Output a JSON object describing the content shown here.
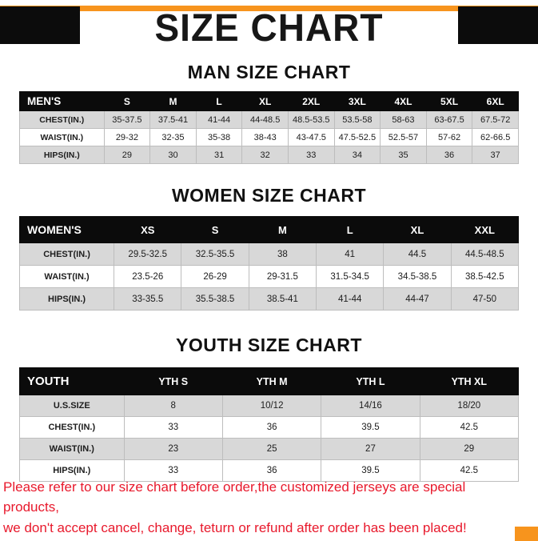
{
  "page": {
    "title": "SIZE CHART",
    "accent_color": "#F7941D",
    "header_block_color": "#0C0C0C",
    "footer_text_color": "#E8192C"
  },
  "sections": [
    {
      "id": "men",
      "heading": "MAN SIZE CHART",
      "table": {
        "header": [
          "MEN'S",
          "S",
          "M",
          "L",
          "XL",
          "2XL",
          "3XL",
          "4XL",
          "5XL",
          "6XL"
        ],
        "rows": [
          [
            "CHEST(IN.)",
            "35-37.5",
            "37.5-41",
            "41-44",
            "44-48.5",
            "48.5-53.5",
            "53.5-58",
            "58-63",
            "63-67.5",
            "67.5-72"
          ],
          [
            "WAIST(IN.)",
            "29-32",
            "32-35",
            "35-38",
            "38-43",
            "43-47.5",
            "47.5-52.5",
            "52.5-57",
            "57-62",
            "62-66.5"
          ],
          [
            "HIPS(IN.)",
            "29",
            "30",
            "31",
            "32",
            "33",
            "34",
            "35",
            "36",
            "37"
          ]
        ]
      }
    },
    {
      "id": "women",
      "heading": "WOMEN SIZE CHART",
      "table": {
        "header": [
          "WOMEN'S",
          "XS",
          "S",
          "M",
          "L",
          "XL",
          "XXL"
        ],
        "rows": [
          [
            "CHEST(IN.)",
            "29.5-32.5",
            "32.5-35.5",
            "38",
            "41",
            "44.5",
            "44.5-48.5"
          ],
          [
            "WAIST(IN.)",
            "23.5-26",
            "26-29",
            "29-31.5",
            "31.5-34.5",
            "34.5-38.5",
            "38.5-42.5"
          ],
          [
            "HIPS(IN.)",
            "33-35.5",
            "35.5-38.5",
            "38.5-41",
            "41-44",
            "44-47",
            "47-50"
          ]
        ]
      }
    },
    {
      "id": "youth",
      "heading": "YOUTH SIZE CHART",
      "table": {
        "header": [
          "YOUTH",
          "YTH S",
          "YTH M",
          "YTH L",
          "YTH XL"
        ],
        "rows": [
          [
            "U.S.SIZE",
            "8",
            "10/12",
            "14/16",
            "18/20"
          ],
          [
            "CHEST(IN.)",
            "33",
            "36",
            "39.5",
            "42.5"
          ],
          [
            "WAIST(IN.)",
            "23",
            "25",
            "27",
            "29"
          ],
          [
            "HIPS(IN.)",
            "33",
            "36",
            "39.5",
            "42.5"
          ]
        ]
      }
    }
  ],
  "footer": {
    "line1": "Please refer to our size chart before order,the customized jerseys are special products,",
    "line2": "we don't accept cancel, change, teturn or refund after order has been placed!"
  }
}
